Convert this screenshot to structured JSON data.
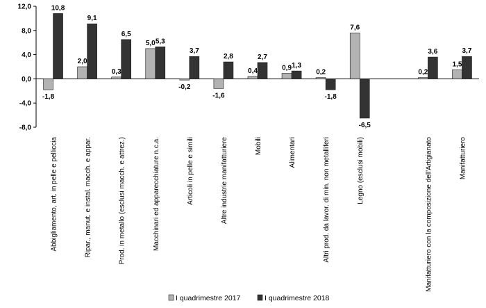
{
  "chart_data": {
    "type": "bar",
    "title": "",
    "xlabel": "",
    "ylabel": "",
    "ylim": [
      -8,
      12
    ],
    "yticks": [
      "12,0",
      "8,0",
      "4,0",
      "0,0",
      "-4,0",
      "-8,0"
    ],
    "ytick_values": [
      12,
      8,
      4,
      0,
      -4,
      -8
    ],
    "grid": false,
    "legend_position": "bottom",
    "categories": [
      "Abbigliamento, art. in pelle e pelliccia",
      "Ripar., manut. e instal. macch. e appar.",
      "Prod. in metallo (esclusi macch. e attrez.)",
      "Macchinari ed apparecchiature n.c.a.",
      "Articoli in pelle e simili",
      "Altre industrie manifatturiere",
      "Mobili",
      "Alimentari",
      "Altri prod. da lavor. di min. non metalliferi",
      "Legno (esclusi mobili)",
      "",
      "Manifatturiero con la composizione dell'Artigianato",
      "Manifatturiero"
    ],
    "series": [
      {
        "name": "I quadrimestre 2017",
        "color": "#b3b3b3",
        "values": [
          -1.8,
          2.0,
          0.3,
          5.0,
          -0.2,
          -1.6,
          0.4,
          0.9,
          0.2,
          7.6,
          null,
          0.2,
          1.5
        ],
        "labels": [
          "-1,8",
          "2,0",
          "0,3",
          "5,0",
          "-0,2",
          "-1,6",
          "0,4",
          "0,9",
          "0,2",
          "7,6",
          "",
          "0,2",
          "1,5"
        ]
      },
      {
        "name": "I quadrimestre 2018",
        "color": "#333333",
        "values": [
          10.8,
          9.1,
          6.5,
          5.3,
          3.7,
          2.8,
          2.7,
          1.3,
          -1.8,
          -6.5,
          null,
          3.6,
          3.7
        ],
        "labels": [
          "10,8",
          "9,1",
          "6,5",
          "5,3",
          "3,7",
          "2,8",
          "2,7",
          "1,3",
          "-1,8",
          "-6,5",
          "",
          "3,6",
          "3,7"
        ]
      }
    ]
  }
}
